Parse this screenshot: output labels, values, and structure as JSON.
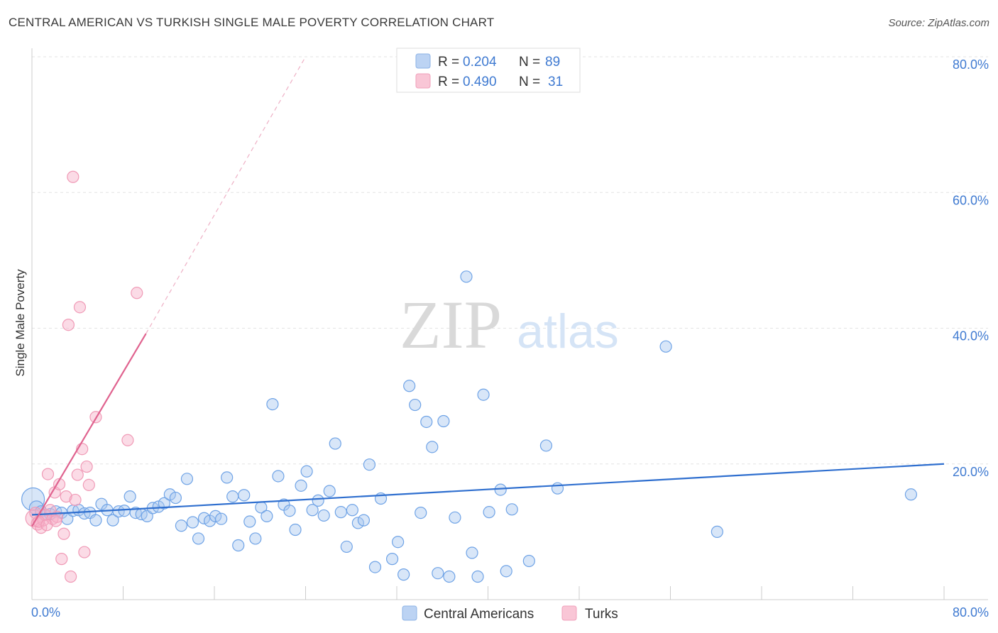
{
  "title": "CENTRAL AMERICAN VS TURKISH SINGLE MALE POVERTY CORRELATION CHART",
  "source": "Source: ZipAtlas.com",
  "watermark": {
    "zip": "ZIP",
    "atlas": "atlas"
  },
  "chart_data": {
    "type": "scatter",
    "ylabel": "Single Male Poverty",
    "xlim": [
      0,
      80
    ],
    "ylim": [
      0,
      80
    ],
    "x_tick_labels": [
      "0.0%",
      "80.0%"
    ],
    "y_ticks": [
      20,
      40,
      60,
      80
    ],
    "y_tick_labels": [
      "20.0%",
      "40.0%",
      "60.0%",
      "80.0%"
    ],
    "grid": true,
    "legend": [
      {
        "r_label": "R =",
        "r_value": "0.204",
        "n_label": "N =",
        "n_value": "89"
      },
      {
        "r_label": "R =",
        "r_value": "0.490",
        "n_label": "N =",
        "n_value": "31"
      }
    ],
    "series": [
      {
        "name": "Central Americans",
        "color": "#6fa3e6",
        "line_color": "#2f6fcf",
        "trend": {
          "x0": 0,
          "y0": 12.5,
          "x1": 80,
          "y1": 20.0
        },
        "points": [
          [
            0.1,
            14.8,
            16
          ],
          [
            0.4,
            13.5,
            10
          ],
          [
            0.8,
            13.0,
            8
          ],
          [
            1.1,
            12.5,
            8
          ],
          [
            1.6,
            12.6,
            8
          ],
          [
            2.1,
            13.0,
            8
          ],
          [
            2.6,
            12.8,
            8
          ],
          [
            3.1,
            11.9,
            8
          ],
          [
            3.6,
            13.1,
            8
          ],
          [
            4.1,
            13.2,
            8
          ],
          [
            4.6,
            12.7,
            8
          ],
          [
            5.1,
            12.8,
            8
          ],
          [
            5.6,
            11.7,
            8
          ],
          [
            6.1,
            14.1,
            8
          ],
          [
            6.6,
            13.2,
            8
          ],
          [
            7.1,
            11.7,
            8
          ],
          [
            7.6,
            13.0,
            8
          ],
          [
            8.1,
            13.1,
            8
          ],
          [
            8.6,
            15.2,
            8
          ],
          [
            9.1,
            12.8,
            8
          ],
          [
            9.6,
            12.6,
            8
          ],
          [
            10.1,
            12.3,
            8
          ],
          [
            10.6,
            13.5,
            8
          ],
          [
            11.1,
            13.7,
            8
          ],
          [
            11.6,
            14.2,
            8
          ],
          [
            12.1,
            15.5,
            8
          ],
          [
            12.6,
            15.0,
            8
          ],
          [
            13.1,
            10.9,
            8
          ],
          [
            13.6,
            17.8,
            8
          ],
          [
            14.1,
            11.4,
            8
          ],
          [
            14.6,
            9.0,
            8
          ],
          [
            15.1,
            12.0,
            8
          ],
          [
            15.6,
            11.6,
            8
          ],
          [
            16.1,
            12.3,
            8
          ],
          [
            16.6,
            11.9,
            8
          ],
          [
            17.1,
            18.0,
            8
          ],
          [
            17.6,
            15.2,
            8
          ],
          [
            18.1,
            8.0,
            8
          ],
          [
            18.6,
            15.4,
            8
          ],
          [
            19.1,
            11.5,
            8
          ],
          [
            19.6,
            9.0,
            8
          ],
          [
            20.1,
            13.6,
            8
          ],
          [
            20.6,
            12.3,
            8
          ],
          [
            21.1,
            28.8,
            8
          ],
          [
            21.6,
            18.2,
            8
          ],
          [
            22.1,
            14.0,
            8
          ],
          [
            22.6,
            13.1,
            8
          ],
          [
            23.1,
            10.3,
            8
          ],
          [
            23.6,
            16.8,
            8
          ],
          [
            24.1,
            18.9,
            8
          ],
          [
            24.6,
            13.2,
            8
          ],
          [
            25.1,
            14.6,
            8
          ],
          [
            25.6,
            12.4,
            8
          ],
          [
            26.1,
            16.0,
            8
          ],
          [
            26.6,
            23.0,
            8
          ],
          [
            27.1,
            12.9,
            8
          ],
          [
            27.6,
            7.8,
            8
          ],
          [
            28.1,
            13.2,
            8
          ],
          [
            28.6,
            11.3,
            8
          ],
          [
            29.1,
            11.7,
            8
          ],
          [
            29.6,
            19.9,
            8
          ],
          [
            30.1,
            4.8,
            8
          ],
          [
            30.6,
            14.9,
            8
          ],
          [
            31.6,
            6.0,
            8
          ],
          [
            32.1,
            8.5,
            8
          ],
          [
            32.6,
            3.7,
            8
          ],
          [
            33.1,
            31.5,
            8
          ],
          [
            33.6,
            28.7,
            8
          ],
          [
            34.1,
            12.8,
            8
          ],
          [
            34.6,
            26.2,
            8
          ],
          [
            35.1,
            22.5,
            8
          ],
          [
            35.6,
            3.9,
            8
          ],
          [
            36.1,
            26.3,
            8
          ],
          [
            36.6,
            3.4,
            8
          ],
          [
            37.1,
            12.1,
            8
          ],
          [
            38.1,
            47.6,
            8
          ],
          [
            38.6,
            6.9,
            8
          ],
          [
            39.1,
            3.4,
            8
          ],
          [
            39.6,
            30.2,
            8
          ],
          [
            40.1,
            12.9,
            8
          ],
          [
            41.1,
            16.2,
            8
          ],
          [
            41.6,
            4.2,
            8
          ],
          [
            42.1,
            13.3,
            8
          ],
          [
            43.6,
            5.7,
            8
          ],
          [
            45.1,
            22.7,
            8
          ],
          [
            46.1,
            16.4,
            8
          ],
          [
            55.6,
            37.3,
            8
          ],
          [
            60.1,
            10.0,
            8
          ],
          [
            77.1,
            15.5,
            8
          ]
        ]
      },
      {
        "name": "Turks",
        "color": "#f4a3bd",
        "line_color": "#e0638f",
        "trend": {
          "x0": 0,
          "y0": 10.8,
          "x1": 10,
          "y1": 39.2
        },
        "trend_extension": {
          "x0": 10,
          "y0": 39.2,
          "x1": 24,
          "y1": 80
        },
        "points": [
          [
            0.2,
            12.0,
            12
          ],
          [
            0.5,
            11.2,
            9
          ],
          [
            0.8,
            10.6,
            8
          ],
          [
            1.0,
            11.7,
            8
          ],
          [
            1.2,
            12.5,
            8
          ],
          [
            1.4,
            18.5,
            8
          ],
          [
            1.6,
            13.2,
            8
          ],
          [
            1.8,
            11.9,
            8
          ],
          [
            2.0,
            15.8,
            8
          ],
          [
            2.2,
            12.2,
            8
          ],
          [
            2.4,
            17.0,
            8
          ],
          [
            2.6,
            6.0,
            8
          ],
          [
            2.8,
            9.7,
            8
          ],
          [
            3.0,
            15.2,
            8
          ],
          [
            3.2,
            40.5,
            8
          ],
          [
            3.4,
            3.4,
            8
          ],
          [
            3.6,
            62.3,
            8
          ],
          [
            3.8,
            14.7,
            8
          ],
          [
            4.0,
            18.4,
            8
          ],
          [
            4.2,
            43.1,
            8
          ],
          [
            4.4,
            22.2,
            8
          ],
          [
            4.6,
            7.0,
            8
          ],
          [
            4.8,
            19.6,
            8
          ],
          [
            5.0,
            16.9,
            8
          ],
          [
            5.6,
            26.9,
            8
          ],
          [
            8.4,
            23.5,
            8
          ],
          [
            9.2,
            45.2,
            8
          ],
          [
            0.3,
            12.8,
            8
          ],
          [
            0.6,
            11.5,
            8
          ],
          [
            1.3,
            11.0,
            8
          ],
          [
            2.1,
            11.6,
            8
          ]
        ]
      }
    ]
  }
}
